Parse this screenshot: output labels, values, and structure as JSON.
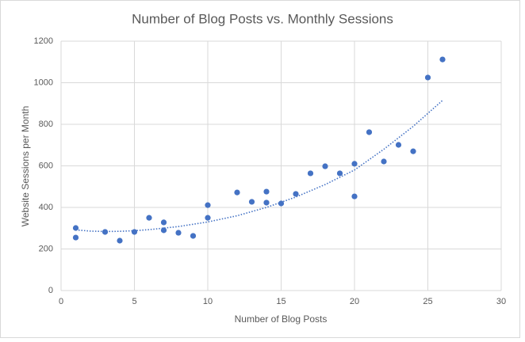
{
  "chart_data": {
    "type": "scatter",
    "title": "Number of Blog Posts vs. Monthly Sessions",
    "x_label": "Number of Blog Posts",
    "y_label": "Website Sessions per Month",
    "xlim": [
      0,
      30
    ],
    "xticks": [
      0,
      5,
      10,
      15,
      20,
      25,
      30
    ],
    "ylim": [
      0,
      1200
    ],
    "yticks": [
      0,
      200,
      400,
      600,
      800,
      1000,
      1200
    ],
    "grid": true,
    "series": [
      {
        "color": "#4472c4",
        "x": [
          1,
          1,
          3,
          4,
          5,
          6,
          7,
          7,
          8,
          9,
          10,
          10,
          12,
          13,
          14,
          14,
          15,
          16,
          17,
          18,
          19,
          20,
          20,
          21,
          22,
          23,
          24,
          25,
          26
        ],
        "values": [
          301,
          255,
          282,
          240,
          282,
          350,
          328,
          290,
          278,
          263,
          411,
          350,
          472,
          427,
          476,
          423,
          419,
          465,
          564,
          598,
          564,
          610,
          453,
          762,
          621,
          701,
          670,
          1025,
          1112
        ]
      }
    ],
    "trendline": {
      "color": "#4472c4",
      "style": "dotted",
      "x": [
        1,
        2,
        3,
        4,
        5,
        6,
        8,
        10,
        12,
        14,
        16,
        18,
        20,
        22,
        24,
        26
      ],
      "values": [
        292,
        286,
        284,
        285,
        288,
        293,
        308,
        330,
        360,
        400,
        450,
        510,
        580,
        680,
        790,
        915
      ]
    }
  }
}
